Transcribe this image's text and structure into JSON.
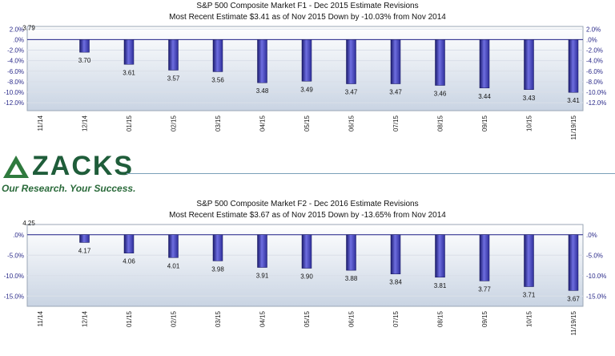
{
  "chart_data": [
    {
      "type": "bar",
      "title": "S&P 500 Composite Market F1 - Dec 2015 Estimate Revisions",
      "subtitle": "Most Recent Estimate $3.41 as of Nov 2015 Down by -10.03% from Nov 2014",
      "categories": [
        "11/14",
        "12/14",
        "01/15",
        "02/15",
        "03/15",
        "04/15",
        "05/15",
        "06/15",
        "07/15",
        "08/15",
        "09/15",
        "10/15",
        "11/19/15"
      ],
      "values": [
        0.0,
        -2.4,
        -4.7,
        -5.8,
        -6.1,
        -8.2,
        -7.9,
        -8.4,
        -8.4,
        -8.7,
        -9.2,
        -9.5,
        -10.03
      ],
      "data_labels": [
        "3.79",
        "3.70",
        "3.61",
        "3.57",
        "3.56",
        "3.48",
        "3.49",
        "3.47",
        "3.47",
        "3.46",
        "3.44",
        "3.43",
        "3.41"
      ],
      "ylim": [
        -13.5,
        2.5
      ],
      "yticks": [
        "2.0%",
        ".0%",
        "-2.0%",
        "-4.0%",
        "-6.0%",
        "-8.0%",
        "-10.0%",
        "-12.0%"
      ],
      "ytick_values": [
        2,
        0,
        -2,
        -4,
        -6,
        -8,
        -10,
        -12
      ],
      "grid": true,
      "bar_color": "#2e2e9a"
    },
    {
      "type": "bar",
      "title": "S&P 500 Composite Market F2 - Dec 2016 Estimate Revisions",
      "subtitle": "Most Recent Estimate $3.67 as of Nov 2015 Down by -13.65% from Nov 2014",
      "categories": [
        "11/14",
        "12/14",
        "01/15",
        "02/15",
        "03/15",
        "04/15",
        "05/15",
        "06/15",
        "07/15",
        "08/15",
        "09/15",
        "10/15",
        "11/19/15"
      ],
      "values": [
        0.0,
        -1.9,
        -4.5,
        -5.6,
        -6.4,
        -8.0,
        -8.2,
        -8.7,
        -9.6,
        -10.4,
        -11.3,
        -12.7,
        -13.65
      ],
      "data_labels": [
        "4.25",
        "4.17",
        "4.06",
        "4.01",
        "3.98",
        "3.91",
        "3.90",
        "3.88",
        "3.84",
        "3.81",
        "3.77",
        "3.71",
        "3.67"
      ],
      "ylim": [
        -17.5,
        2.5
      ],
      "yticks": [
        ".0%",
        "-5.0%",
        "-10.0%",
        "-15.0%"
      ],
      "ytick_values": [
        0,
        -5,
        -10,
        -15
      ],
      "grid": true,
      "bar_color": "#2e2e9a"
    }
  ],
  "brand": {
    "name": "ZACKS",
    "tagline": "Our Research. Your Success.",
    "color": "#1f5d3a"
  }
}
